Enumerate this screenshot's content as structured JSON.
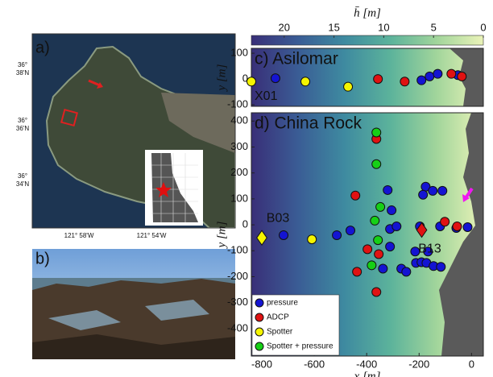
{
  "panels": {
    "a": {
      "label": "a)",
      "lat_labels": [
        "36°\n38'N",
        "36°\n36'N",
        "36°\n34'N"
      ],
      "lon_labels": [
        "121° 58'W",
        "121° 54'W"
      ]
    },
    "b": {
      "label": "b)"
    }
  },
  "colorbar": {
    "label": "h̄ [m]",
    "lim": [
      23.3,
      0
    ],
    "ticks": [
      20,
      15,
      10,
      5,
      0
    ],
    "colors": [
      "#392f78",
      "#3a5c95",
      "#3e8aa0",
      "#5cb39b",
      "#a2d59b",
      "#eaf3b8"
    ]
  },
  "chart_data": [
    {
      "type": "scatter",
      "title": "c) Asilomar",
      "ylabel": "y [m]",
      "xlim": [
        -840,
        45
      ],
      "ylim": [
        -106,
        119
      ],
      "yticks": [
        100,
        0,
        -100
      ],
      "annotations": [
        {
          "text": "X01",
          "color": "#f2e51c"
        }
      ],
      "series": [
        {
          "name": "pressure",
          "color": "#1414d2",
          "x": [
            -748,
            -191,
            -160,
            -129,
            -52
          ],
          "y": [
            3,
            -5,
            10,
            20,
            15
          ]
        },
        {
          "name": "ADCP",
          "color": "#e01212",
          "x": [
            -357,
            -255,
            -77,
            -37
          ],
          "y": [
            0,
            -10,
            20,
            10
          ]
        },
        {
          "name": "Spotter",
          "color": "#f5f500",
          "x": [
            -840,
            -634,
            -471
          ],
          "y": [
            -10,
            -10,
            -30
          ]
        }
      ]
    },
    {
      "type": "scatter",
      "title": "d) China Rock",
      "xlabel": "x [m]",
      "ylabel": "y [m]",
      "xlim": [
        -840,
        45
      ],
      "ylim": [
        -506,
        432
      ],
      "xticks": [
        -800,
        -600,
        -400,
        -200,
        0
      ],
      "yticks": [
        400,
        300,
        200,
        100,
        0,
        -100,
        -200,
        -300,
        -400
      ],
      "legend": "lower left",
      "annotations": [
        {
          "text": "B03",
          "x": -800,
          "y": -50,
          "color": "#f5f500"
        },
        {
          "text": "B13",
          "x": -190,
          "y": -20,
          "color": "#e01212"
        }
      ],
      "series": [
        {
          "name": "pressure",
          "color": "#1414d2",
          "x": [
            -717,
            -514,
            -462,
            -311,
            -286,
            -320,
            -305,
            -311,
            -338,
            -268,
            -197,
            -120,
            -58,
            -15,
            -175,
            -148,
            -111,
            -185,
            -215,
            -166,
            -212,
            -191,
            -172,
            -145,
            -117,
            -249
          ],
          "y": [
            -40,
            -40,
            -22,
            -16,
            -6,
            134,
            56,
            -84,
            -169,
            -169,
            -6,
            -6,
            -12,
            -9,
            147,
            131,
            131,
            116,
            -103,
            -103,
            -147,
            -144,
            -147,
            -159,
            -162,
            -181
          ]
        },
        {
          "name": "ADCP",
          "color": "#e01212",
          "x": [
            -443,
            -363,
            -354,
            -397,
            -437,
            -363,
            -102,
            -55
          ],
          "y": [
            113,
            331,
            -113,
            -94,
            -181,
            -259,
            12,
            -6
          ]
        },
        {
          "name": "Spotter",
          "color": "#f5f500",
          "x": [
            -609
          ],
          "y": [
            -56
          ]
        },
        {
          "name": "Spotter + pressure",
          "color": "#16d016",
          "x": [
            -363,
            -363,
            -369,
            -348,
            -357,
            -381
          ],
          "y": [
            356,
            234,
            16,
            69,
            -59,
            -156
          ]
        }
      ]
    }
  ]
}
